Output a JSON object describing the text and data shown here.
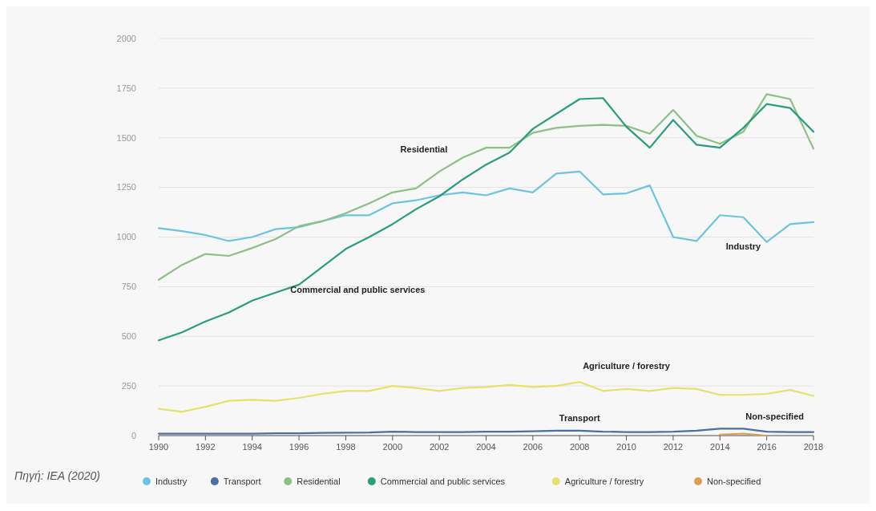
{
  "chart_data": {
    "type": "line",
    "x": [
      1990,
      1991,
      1992,
      1993,
      1994,
      1995,
      1996,
      1997,
      1998,
      1999,
      2000,
      2001,
      2002,
      2003,
      2004,
      2005,
      2006,
      2007,
      2008,
      2009,
      2010,
      2011,
      2012,
      2013,
      2014,
      2015,
      2016,
      2017,
      2018
    ],
    "series": [
      {
        "name": "Industry",
        "color": "#6cc4e0",
        "values": [
          1045,
          1030,
          1010,
          980,
          1000,
          1040,
          1050,
          1080,
          1110,
          1110,
          1170,
          1185,
          1210,
          1225,
          1210,
          1245,
          1225,
          1320,
          1330,
          1215,
          1220,
          1260,
          1000,
          980,
          1110,
          1100,
          975,
          1065,
          1075
        ]
      },
      {
        "name": "Transport",
        "color": "#4a6fa5",
        "values": [
          10,
          10,
          10,
          10,
          10,
          12,
          12,
          14,
          15,
          16,
          20,
          18,
          18,
          18,
          20,
          20,
          22,
          25,
          25,
          20,
          18,
          18,
          20,
          25,
          35,
          35,
          20,
          18,
          18
        ]
      },
      {
        "name": "Residential",
        "color": "#8cc084",
        "values": [
          785,
          860,
          915,
          905,
          945,
          990,
          1055,
          1080,
          1120,
          1170,
          1225,
          1245,
          1330,
          1400,
          1450,
          1450,
          1525,
          1550,
          1560,
          1565,
          1560,
          1520,
          1640,
          1510,
          1470,
          1530,
          1720,
          1695,
          1445
        ]
      },
      {
        "name": "Commercial and public services",
        "color": "#2a9d7f",
        "values": [
          480,
          520,
          575,
          620,
          680,
          720,
          760,
          850,
          940,
          1000,
          1065,
          1140,
          1205,
          1290,
          1365,
          1425,
          1545,
          1620,
          1695,
          1700,
          1555,
          1450,
          1590,
          1465,
          1450,
          1550,
          1670,
          1650,
          1530
        ]
      },
      {
        "name": "Agriculture / forestry",
        "color": "#e3e36a",
        "values": [
          135,
          120,
          145,
          175,
          180,
          175,
          190,
          210,
          225,
          225,
          250,
          240,
          225,
          240,
          245,
          255,
          245,
          250,
          270,
          225,
          235,
          225,
          240,
          235,
          205,
          205,
          210,
          230,
          200
        ]
      },
      {
        "name": "Non-specified",
        "color": "#d9a050",
        "values": [
          null,
          null,
          null,
          null,
          null,
          null,
          null,
          null,
          null,
          null,
          null,
          null,
          null,
          null,
          null,
          null,
          null,
          null,
          null,
          null,
          null,
          null,
          null,
          null,
          5,
          10,
          0,
          null,
          null
        ]
      }
    ],
    "xlim": [
      1990,
      2018
    ],
    "xticks": [
      1990,
      1992,
      1994,
      1996,
      1998,
      2000,
      2002,
      2004,
      2006,
      2008,
      2010,
      2012,
      2014,
      2016,
      2018
    ],
    "ylim": [
      0,
      2000
    ],
    "yticks": [
      0,
      250,
      500,
      750,
      1000,
      1250,
      1500,
      1750,
      2000
    ],
    "grid": "y",
    "legend": "bottom",
    "marker": "none",
    "line_style": "solid",
    "annotations": [
      "Πηγή: IEA (2020)"
    ]
  }
}
